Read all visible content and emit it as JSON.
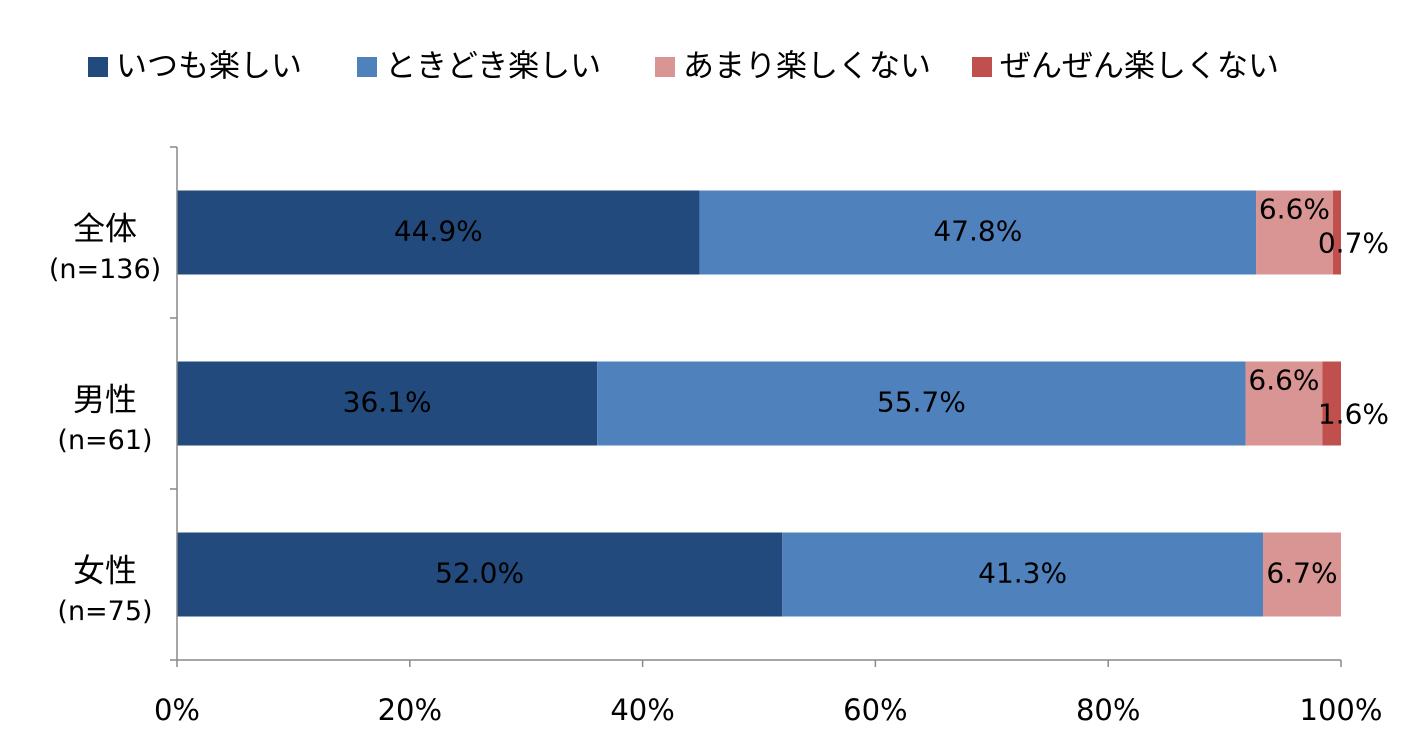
{
  "chart_data": {
    "type": "stacked-bar-horizontal",
    "categories": [
      "全体",
      "男性",
      "女性"
    ],
    "category_notes": [
      "(n=136)",
      "(n=61)",
      "(n=75)"
    ],
    "series": [
      {
        "name": "いつも楽しい",
        "color": "#234a7d",
        "values": [
          44.9,
          36.1,
          52.0
        ],
        "value_labels": [
          "44.9%",
          "36.1%",
          "52.0%"
        ]
      },
      {
        "name": "ときどき楽しい",
        "color": "#4f81bd",
        "values": [
          47.8,
          55.7,
          41.3
        ],
        "value_labels": [
          "47.8%",
          "55.7%",
          "41.3%"
        ]
      },
      {
        "name": "あまり楽しくない",
        "color": "#d99594",
        "values": [
          6.6,
          6.6,
          6.7
        ],
        "value_labels": [
          "6.6%",
          "6.6%",
          "6.7%"
        ]
      },
      {
        "name": "ぜんぜん楽しくない",
        "color": "#c0504d",
        "values": [
          0.7,
          1.6,
          null
        ],
        "value_labels": [
          "0.7%",
          "1.6%",
          null
        ]
      }
    ],
    "xlim": [
      0,
      100
    ],
    "xticks": [
      {
        "value": 0,
        "label": "0%"
      },
      {
        "value": 20,
        "label": "20%"
      },
      {
        "value": 40,
        "label": "40%"
      },
      {
        "value": 60,
        "label": "60%"
      },
      {
        "value": 80,
        "label": "80%"
      },
      {
        "value": 100,
        "label": "100%"
      }
    ]
  }
}
